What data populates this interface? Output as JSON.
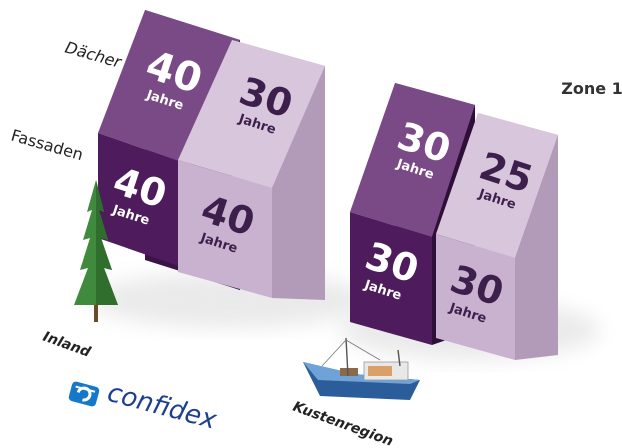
{
  "zone_label": "Zone 1",
  "row_labels": {
    "roof": "Dächer",
    "facade": "Fassaden"
  },
  "unit": "Jahre",
  "groups": [
    {
      "label": "Inland",
      "panels": [
        {
          "roof": "40",
          "facade": "40",
          "shade": "dark"
        },
        {
          "roof": "30",
          "facade": "40",
          "shade": "light"
        }
      ]
    },
    {
      "label": "Kustenregion",
      "panels": [
        {
          "roof": "30",
          "facade": "30",
          "shade": "dark"
        },
        {
          "roof": "25",
          "facade": "30",
          "shade": "light"
        }
      ]
    }
  ],
  "logo_text": "confidex",
  "colors": {
    "dark_roof": "#7a4a86",
    "dark_facade": "#4e1b5c",
    "dark_side": "#2e0f38",
    "light_roof": "#d7c6dc",
    "light_facade": "#c8b2cf",
    "light_side": "#b29bb9",
    "light_text": "#3d1f4c",
    "tree": "#3f8a3c",
    "logo_blue": "#1578c9"
  }
}
